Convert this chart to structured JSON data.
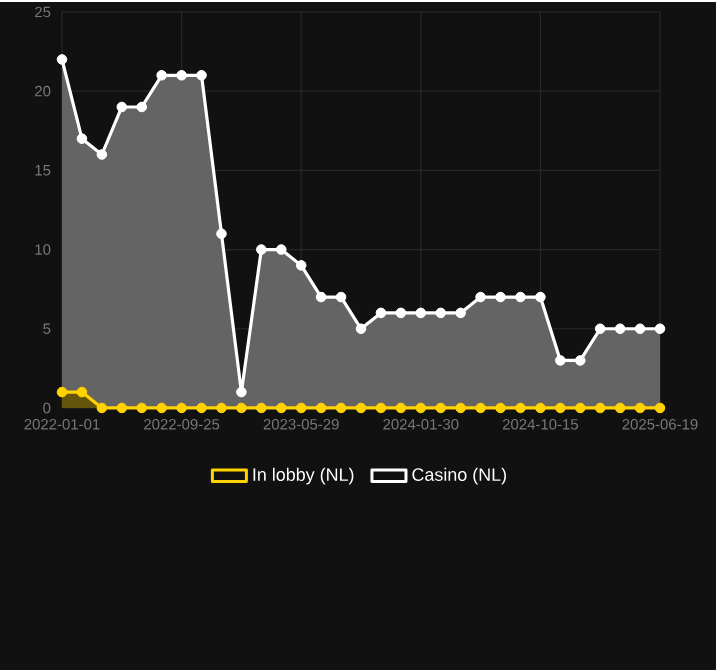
{
  "chart_data": {
    "type": "area",
    "categories": [
      "2022-01-01",
      null,
      null,
      null,
      null,
      null,
      "2022-09-25",
      null,
      null,
      null,
      null,
      null,
      "2023-05-29",
      null,
      null,
      null,
      null,
      null,
      "2024-01-30",
      null,
      null,
      null,
      null,
      null,
      "2024-10-15",
      null,
      null,
      null,
      null,
      null,
      "2025-06-19"
    ],
    "series": [
      {
        "name": "In lobby (NL)",
        "color": "#ffd200",
        "values": [
          1,
          1,
          0,
          0,
          0,
          0,
          0,
          0,
          0,
          0,
          0,
          0,
          0,
          0,
          0,
          0,
          0,
          0,
          0,
          0,
          0,
          0,
          0,
          0,
          0,
          0,
          0,
          0,
          0,
          0,
          0
        ]
      },
      {
        "name": "Casino (NL)",
        "color": "#ffffff",
        "values": [
          22,
          17,
          16,
          19,
          19,
          21,
          21,
          21,
          11,
          1,
          10,
          10,
          9,
          7,
          7,
          5,
          6,
          6,
          6,
          6,
          6,
          7,
          7,
          7,
          7,
          3,
          3,
          5,
          5,
          5,
          5
        ]
      }
    ],
    "ylim": [
      0,
      25
    ],
    "yticks": [
      0,
      5,
      10,
      15,
      20,
      25
    ],
    "grid": true,
    "legend": "bottom",
    "marker": "circle"
  }
}
